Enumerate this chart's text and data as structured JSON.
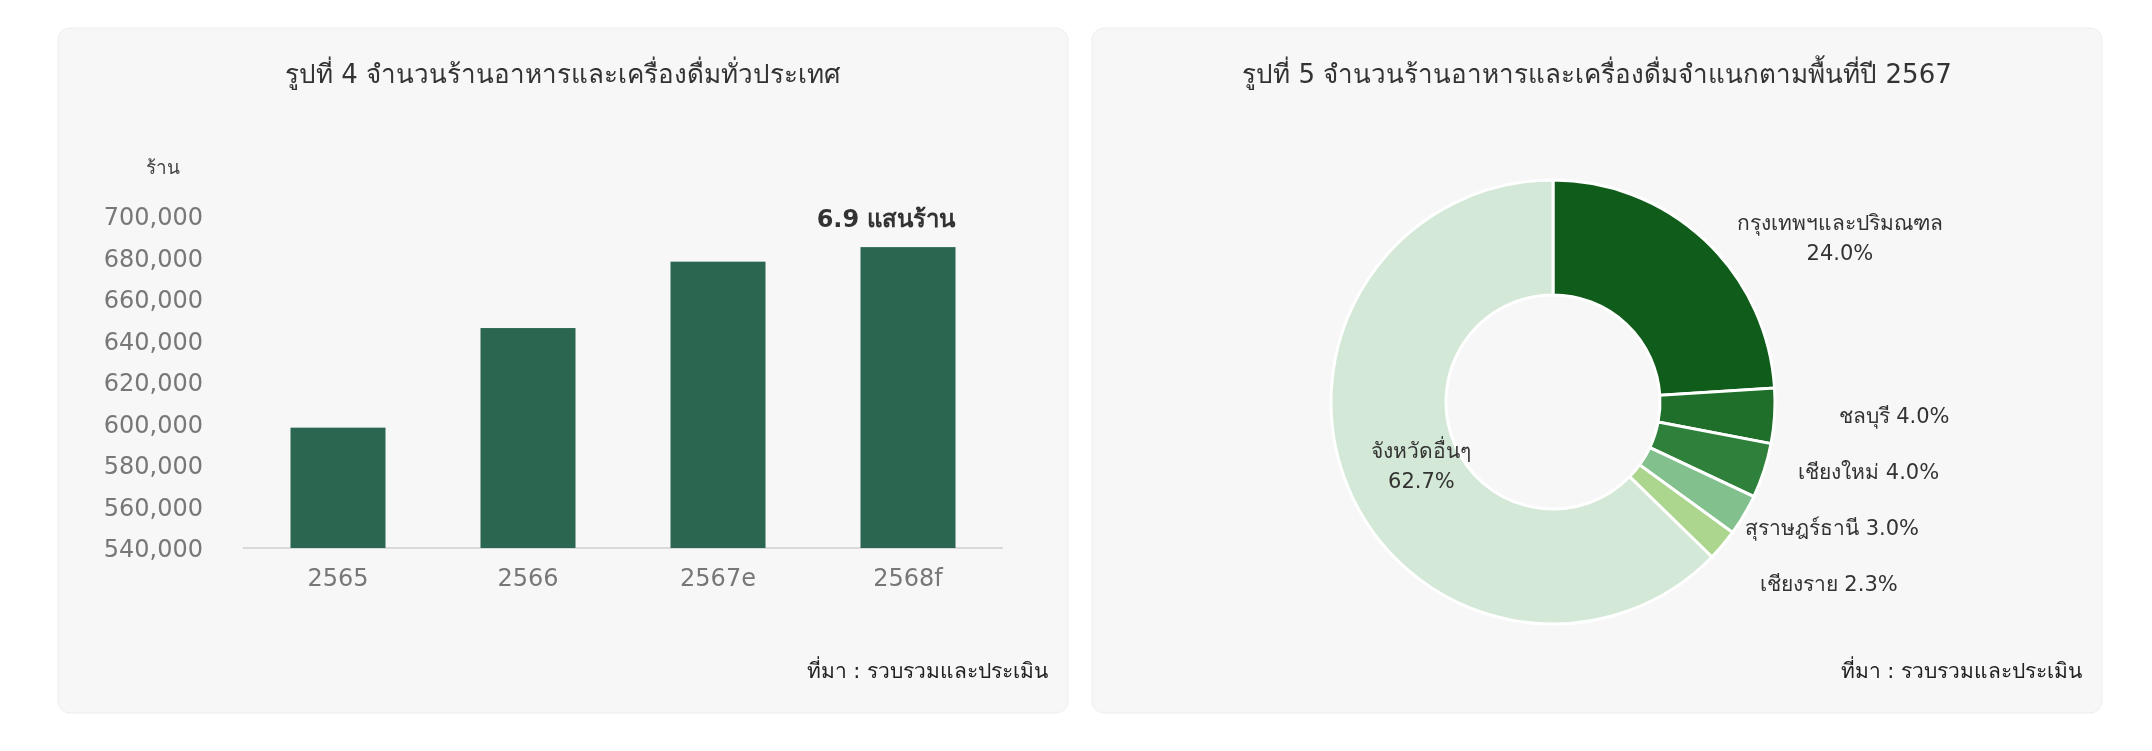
{
  "chart_data": [
    {
      "type": "bar",
      "title": "รูปที่ 4  จำนวนร้านอาหารและเครื่องดื่มทั่วประเทศ",
      "ylabel": "ร้าน",
      "categories": [
        "2565",
        "2566",
        "2567e",
        "2568f"
      ],
      "values": [
        598000,
        646000,
        678000,
        685000
      ],
      "color": "#2a6650",
      "ylim": [
        540000,
        700000
      ],
      "yticks": [
        {
          "value": 540000,
          "label": "540,000"
        },
        {
          "value": 560000,
          "label": "560,000"
        },
        {
          "value": 580000,
          "label": "580,000"
        },
        {
          "value": 600000,
          "label": "600,000"
        },
        {
          "value": 620000,
          "label": "620,000"
        },
        {
          "value": 640000,
          "label": "640,000"
        },
        {
          "value": 660000,
          "label": "660,000"
        },
        {
          "value": 680000,
          "label": "680,000"
        },
        {
          "value": 700000,
          "label": "700,000"
        }
      ],
      "annotations": [
        {
          "text": "6.9 แสนร้าน",
          "x": "2568f",
          "y": 685000
        },
        "ที่มา : รวบรวมและประเมิน"
      ]
    },
    {
      "type": "donut",
      "title": "รูปที่  5 จำนวนร้านอาหารและเครื่องดื่มจำแนกตามพื้นที่ปี 2567",
      "categories": [
        "กรุงเทพฯและปริมณฑล",
        "ชลบุรี",
        "เชียงใหม่",
        "สุราษฎร์ธานี",
        "เชียงราย",
        "จังหวัดอื่นๆ"
      ],
      "values": [
        24.0,
        4.0,
        4.0,
        3.0,
        2.3,
        62.7
      ],
      "value_labels": [
        "24.0%",
        "4.0%",
        "4.0%",
        "3.0%",
        "2.3%",
        "62.7%"
      ],
      "colors": [
        "#0f5c1b",
        "#1f6e2a",
        "#2f803a",
        "#82c08e",
        "#acd68e",
        "#d3e8d6"
      ],
      "annotations": [
        "ที่มา : รวบรวมและประเมิน"
      ]
    }
  ]
}
